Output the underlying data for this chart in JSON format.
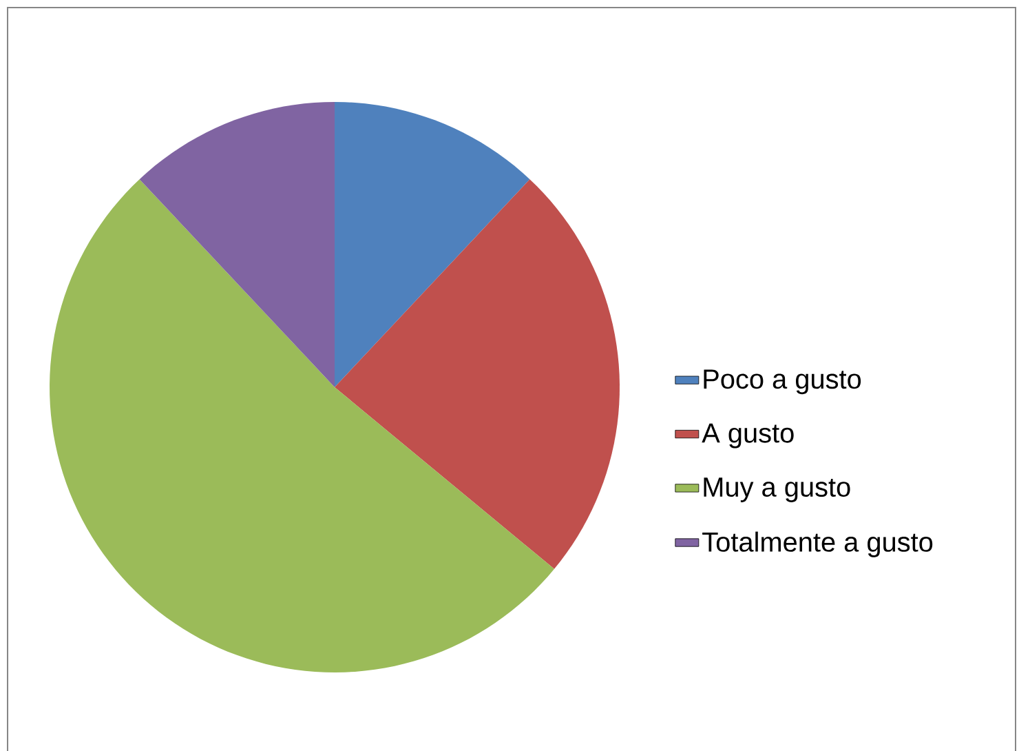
{
  "chart_data": {
    "type": "pie",
    "categories": [
      "Poco a gusto",
      "A gusto",
      "Muy a gusto",
      "Totalmente a gusto"
    ],
    "values": [
      12,
      24,
      52,
      12
    ],
    "colors": [
      "#4f81bd",
      "#c0504d",
      "#9bbb59",
      "#8064a2"
    ],
    "legend": "right"
  }
}
